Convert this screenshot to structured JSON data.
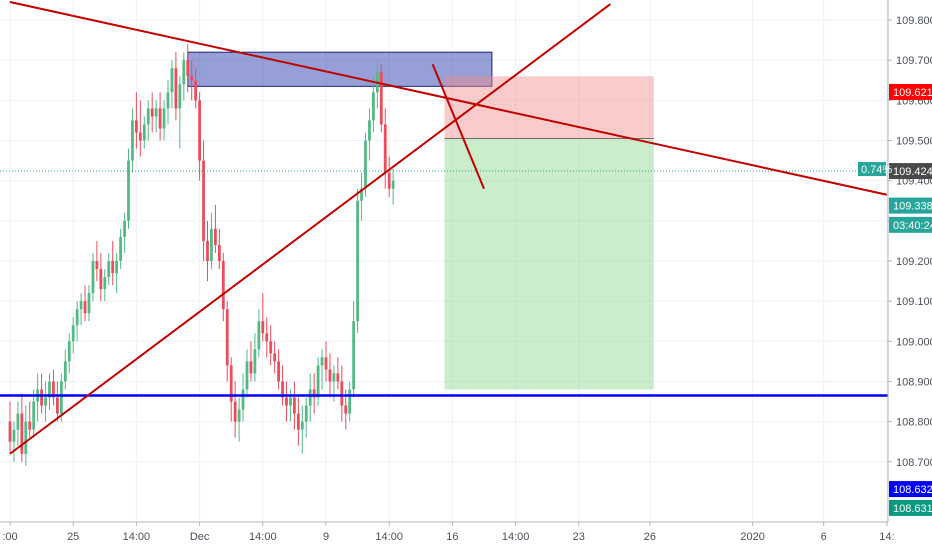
{
  "chart_data": {
    "type": "candlestick",
    "title": "",
    "y_axis": {
      "range": [
        108.55,
        109.85
      ],
      "tick_labels": [
        "109.800",
        "109.700",
        "109.600",
        "109.500",
        "109.400",
        "109.300",
        "109.200",
        "109.100",
        "109.000",
        "108.900",
        "108.800",
        "108.700"
      ],
      "tick_values": [
        109.8,
        109.7,
        109.6,
        109.5,
        109.4,
        109.3,
        109.2,
        109.1,
        109.0,
        108.9,
        108.8,
        108.7
      ],
      "side": "right",
      "grid": true
    },
    "x_axis": {
      "tick_labels": [
        ":00",
        "25",
        "14:00",
        "Dec",
        "14:00",
        "9",
        "14:00",
        "16",
        "14:00",
        "23",
        "26",
        "2020",
        "6",
        "14:"
      ],
      "tick_positions_bar": [
        0,
        16,
        32,
        48,
        64,
        80,
        96,
        112,
        128,
        144,
        162,
        188,
        206,
        222
      ],
      "grid": true
    },
    "price_badges": [
      {
        "label": "109.621",
        "value": 109.621,
        "color": "#ff0000"
      },
      {
        "label": "109.424",
        "value": 109.424,
        "color": "#4a4a4a"
      },
      {
        "label": "109.338",
        "value": 109.338,
        "color": "#26a69a"
      },
      {
        "label": "03:40:24",
        "value": 109.29,
        "color": "#26a69a"
      },
      {
        "label": "108.632",
        "value": 108.632,
        "color": "#0000ff"
      },
      {
        "label": "108.631",
        "value": 108.585,
        "color": "#089981"
      }
    ],
    "percent_badge": {
      "label": "0.74%",
      "value": 109.424,
      "color": "#26a69a"
    },
    "current_price_line": 109.424,
    "horizontal_lines": [
      {
        "name": "support",
        "value": 108.865,
        "color": "#0000ff"
      }
    ],
    "trend_lines": [
      {
        "name": "descending-trendline",
        "from": {
          "bar": 0,
          "price": 109.845
        },
        "to": {
          "bar": 222,
          "price": 109.365
        },
        "color": "#c00000"
      },
      {
        "name": "ascending-trendline",
        "from": {
          "bar": 0,
          "price": 108.72
        },
        "to": {
          "bar": 152,
          "price": 109.84
        },
        "color": "#c00000"
      },
      {
        "name": "projection-line",
        "from": {
          "bar": 107,
          "price": 109.69
        },
        "to": {
          "bar": 120,
          "price": 109.38
        },
        "color": "#c00000"
      }
    ],
    "zones": [
      {
        "name": "supply-zone",
        "x0": 45,
        "x1": 122,
        "y0": 109.635,
        "y1": 109.72,
        "color": "#3f51b5"
      },
      {
        "name": "stop-zone",
        "x0": 110,
        "x1": 163,
        "y0": 109.505,
        "y1": 109.66,
        "color": "#f28b8b"
      },
      {
        "name": "target-zone",
        "x0": 110,
        "x1": 163,
        "y0": 108.88,
        "y1": 109.505,
        "color": "#8fd68f"
      }
    ],
    "candles": [
      [
        108.8,
        108.85,
        108.72,
        108.75
      ],
      [
        108.75,
        108.8,
        108.7,
        108.78
      ],
      [
        108.78,
        108.85,
        108.74,
        108.82
      ],
      [
        108.82,
        108.87,
        108.7,
        108.72
      ],
      [
        108.72,
        108.84,
        108.69,
        108.8
      ],
      [
        108.8,
        108.85,
        108.76,
        108.78
      ],
      [
        108.78,
        108.88,
        108.76,
        108.85
      ],
      [
        108.85,
        108.92,
        108.8,
        108.88
      ],
      [
        108.88,
        108.92,
        108.82,
        108.84
      ],
      [
        108.84,
        108.9,
        108.8,
        108.86
      ],
      [
        108.86,
        108.92,
        108.83,
        108.9
      ],
      [
        108.9,
        108.93,
        108.84,
        108.86
      ],
      [
        108.86,
        108.9,
        108.8,
        108.82
      ],
      [
        108.82,
        108.92,
        108.8,
        108.9
      ],
      [
        108.9,
        108.98,
        108.88,
        108.95
      ],
      [
        108.95,
        109.02,
        108.92,
        109.0
      ],
      [
        109.0,
        109.06,
        108.97,
        109.04
      ],
      [
        109.04,
        109.1,
        109.0,
        109.08
      ],
      [
        109.08,
        109.12,
        109.04,
        109.1
      ],
      [
        109.1,
        109.14,
        109.05,
        109.07
      ],
      [
        109.07,
        109.14,
        109.05,
        109.12
      ],
      [
        109.12,
        109.22,
        109.1,
        109.2
      ],
      [
        109.2,
        109.25,
        109.15,
        109.18
      ],
      [
        109.18,
        109.22,
        109.1,
        109.13
      ],
      [
        109.13,
        109.18,
        109.1,
        109.16
      ],
      [
        109.16,
        109.22,
        109.14,
        109.2
      ],
      [
        109.2,
        109.25,
        109.14,
        109.17
      ],
      [
        109.17,
        109.22,
        109.12,
        109.2
      ],
      [
        109.2,
        109.28,
        109.18,
        109.26
      ],
      [
        109.26,
        109.32,
        109.22,
        109.3
      ],
      [
        109.3,
        109.48,
        109.28,
        109.45
      ],
      [
        109.45,
        109.58,
        109.42,
        109.55
      ],
      [
        109.55,
        109.62,
        109.48,
        109.52
      ],
      [
        109.52,
        109.6,
        109.46,
        109.5
      ],
      [
        109.5,
        109.56,
        109.48,
        109.54
      ],
      [
        109.54,
        109.6,
        109.5,
        109.58
      ],
      [
        109.58,
        109.62,
        109.52,
        109.56
      ],
      [
        109.56,
        109.6,
        109.52,
        109.58
      ],
      [
        109.58,
        109.62,
        109.5,
        109.53
      ],
      [
        109.53,
        109.6,
        109.5,
        109.58
      ],
      [
        109.58,
        109.65,
        109.54,
        109.62
      ],
      [
        109.62,
        109.7,
        109.58,
        109.68
      ],
      [
        109.68,
        109.72,
        109.55,
        109.58
      ],
      [
        109.58,
        109.66,
        109.48,
        109.64
      ],
      [
        109.64,
        109.72,
        109.6,
        109.7
      ],
      [
        109.7,
        109.74,
        109.62,
        109.66
      ],
      [
        109.66,
        109.7,
        109.6,
        109.65
      ],
      [
        109.65,
        109.68,
        109.58,
        109.6
      ],
      [
        109.6,
        109.62,
        109.4,
        109.45
      ],
      [
        109.45,
        109.5,
        109.2,
        109.25
      ],
      [
        109.25,
        109.3,
        109.15,
        109.2
      ],
      [
        109.2,
        109.32,
        109.18,
        109.28
      ],
      [
        109.28,
        109.34,
        109.22,
        109.24
      ],
      [
        109.24,
        109.28,
        109.18,
        109.2
      ],
      [
        109.2,
        109.22,
        109.05,
        109.08
      ],
      [
        109.08,
        109.1,
        108.9,
        108.94
      ],
      [
        108.94,
        108.96,
        108.8,
        108.85
      ],
      [
        108.85,
        108.9,
        108.76,
        108.8
      ],
      [
        108.8,
        108.86,
        108.75,
        108.83
      ],
      [
        108.83,
        108.92,
        108.8,
        108.88
      ],
      [
        108.88,
        108.98,
        108.86,
        108.95
      ],
      [
        108.95,
        109.0,
        108.9,
        108.92
      ],
      [
        108.92,
        109.02,
        108.9,
        108.98
      ],
      [
        108.98,
        109.08,
        108.96,
        109.05
      ],
      [
        109.05,
        109.12,
        109.0,
        109.02
      ],
      [
        109.02,
        109.06,
        108.96,
        109.0
      ],
      [
        109.0,
        109.04,
        108.94,
        108.97
      ],
      [
        108.97,
        109.0,
        108.92,
        108.95
      ],
      [
        108.95,
        108.98,
        108.88,
        108.9
      ],
      [
        108.9,
        108.94,
        108.84,
        108.86
      ],
      [
        108.86,
        108.9,
        108.8,
        108.84
      ],
      [
        108.84,
        108.88,
        108.8,
        108.86
      ],
      [
        108.86,
        108.9,
        108.78,
        108.82
      ],
      [
        108.82,
        108.86,
        108.74,
        108.78
      ],
      [
        108.78,
        108.84,
        108.72,
        108.8
      ],
      [
        108.8,
        108.86,
        108.76,
        108.84
      ],
      [
        108.84,
        108.92,
        108.8,
        108.88
      ],
      [
        108.88,
        108.92,
        108.82,
        108.86
      ],
      [
        108.86,
        108.96,
        108.84,
        108.94
      ],
      [
        108.94,
        108.98,
        108.88,
        108.96
      ],
      [
        108.96,
        109.0,
        108.9,
        108.93
      ],
      [
        108.93,
        108.97,
        108.86,
        108.9
      ],
      [
        108.9,
        108.94,
        108.85,
        108.92
      ],
      [
        108.92,
        108.96,
        108.88,
        108.9
      ],
      [
        108.9,
        108.94,
        108.8,
        108.84
      ],
      [
        108.84,
        108.88,
        108.78,
        108.82
      ],
      [
        108.82,
        108.9,
        108.8,
        108.88
      ],
      [
        108.88,
        109.1,
        108.86,
        109.05
      ],
      [
        109.05,
        109.38,
        109.02,
        109.35
      ],
      [
        109.35,
        109.42,
        109.3,
        109.38
      ],
      [
        109.38,
        109.52,
        109.36,
        109.5
      ],
      [
        109.5,
        109.58,
        109.45,
        109.55
      ],
      [
        109.55,
        109.66,
        109.52,
        109.62
      ],
      [
        109.62,
        109.7,
        109.58,
        109.67
      ],
      [
        109.67,
        109.69,
        109.52,
        109.54
      ],
      [
        109.54,
        109.58,
        109.38,
        109.42
      ],
      [
        109.42,
        109.46,
        109.36,
        109.38
      ],
      [
        109.38,
        109.43,
        109.34,
        109.4
      ]
    ]
  }
}
